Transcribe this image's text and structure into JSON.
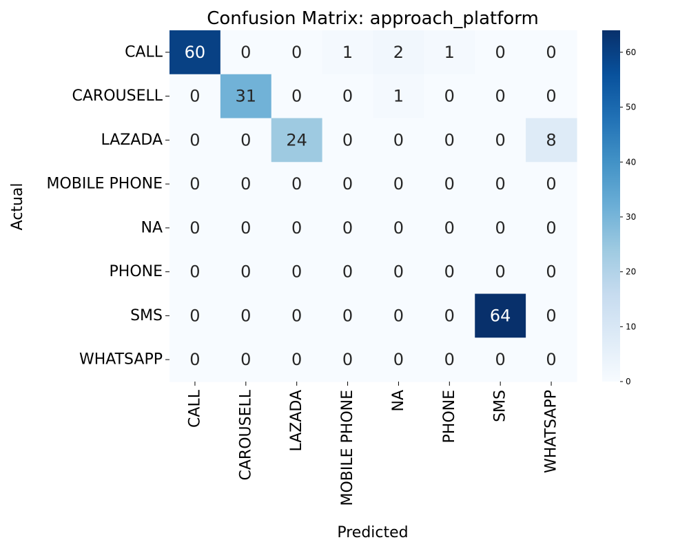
{
  "chart_data": {
    "type": "heatmap",
    "title": "Confusion Matrix: approach_platform",
    "xlabel": "Predicted",
    "ylabel": "Actual",
    "x_categories": [
      "CALL",
      "CAROUSELL",
      "LAZADA",
      "MOBILE PHONE",
      "NA",
      "PHONE",
      "SMS",
      "WHATSAPP"
    ],
    "y_categories": [
      "CALL",
      "CAROUSELL",
      "LAZADA",
      "MOBILE PHONE",
      "NA",
      "PHONE",
      "SMS",
      "WHATSAPP"
    ],
    "matrix": [
      [
        60,
        0,
        0,
        1,
        2,
        1,
        0,
        0
      ],
      [
        0,
        31,
        0,
        0,
        1,
        0,
        0,
        0
      ],
      [
        0,
        0,
        24,
        0,
        0,
        0,
        0,
        8
      ],
      [
        0,
        0,
        0,
        0,
        0,
        0,
        0,
        0
      ],
      [
        0,
        0,
        0,
        0,
        0,
        0,
        0,
        0
      ],
      [
        0,
        0,
        0,
        0,
        0,
        0,
        0,
        0
      ],
      [
        0,
        0,
        0,
        0,
        0,
        0,
        64,
        0
      ],
      [
        0,
        0,
        0,
        0,
        0,
        0,
        0,
        0
      ]
    ],
    "colormap": "Blues",
    "colorbar": {
      "min": 0,
      "max": 64,
      "ticks": [
        0,
        10,
        20,
        30,
        40,
        50,
        60
      ]
    },
    "colors": {
      "low": "#f7fbff",
      "high": "#08306b",
      "text_dark": "#262626",
      "text_light": "#ffffff"
    }
  }
}
